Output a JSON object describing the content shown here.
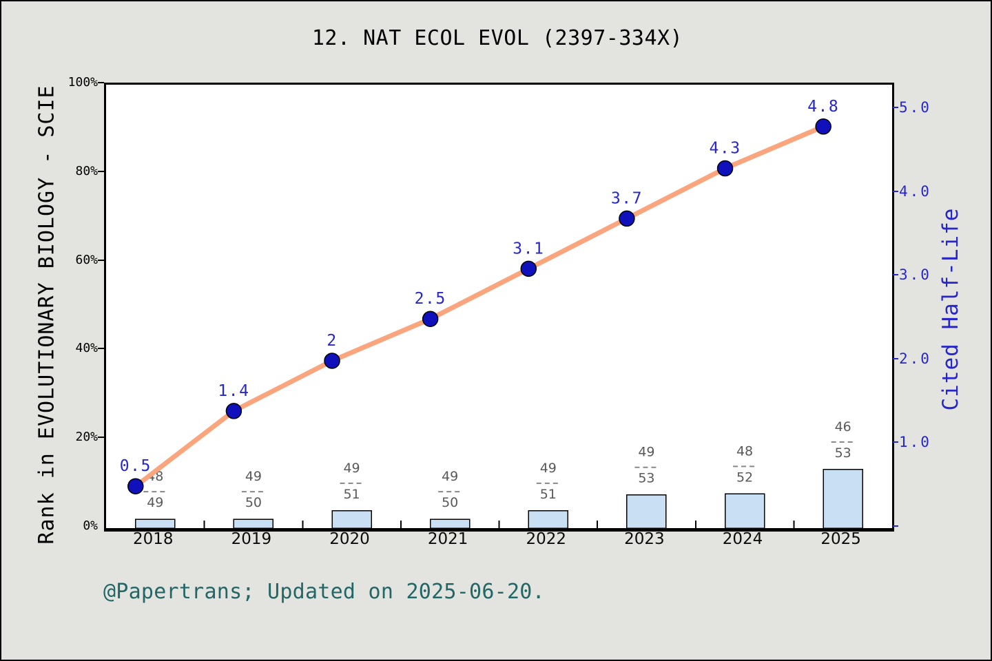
{
  "chart_data": {
    "type": "bar+line",
    "title": "12. NAT ECOL EVOL (2397-334X)",
    "footer": "@Papertrans; Updated on 2025-06-20.",
    "categories": [
      "2018",
      "2019",
      "2020",
      "2021",
      "2022",
      "2023",
      "2024",
      "2025"
    ],
    "left_axis": {
      "label": "Rank in EVOLUTIONARY BIOLOGY - SCIE",
      "range": [
        0,
        100
      ],
      "ticks": [
        {
          "value": 0,
          "label": "0%"
        },
        {
          "value": 20,
          "label": "20%"
        },
        {
          "value": 40,
          "label": "40%"
        },
        {
          "value": 60,
          "label": "60%"
        },
        {
          "value": 80,
          "label": "80%"
        },
        {
          "value": 100,
          "label": "100%"
        }
      ]
    },
    "right_axis": {
      "label": "Cited Half-Life",
      "range": [
        0,
        5.3
      ],
      "ticks": [
        {
          "value": 0,
          "label": ""
        },
        {
          "value": 1,
          "label": "1.0"
        },
        {
          "value": 2,
          "label": "2.0"
        },
        {
          "value": 3,
          "label": "3.0"
        },
        {
          "value": 4,
          "label": "4.0"
        },
        {
          "value": 5,
          "label": "5.0"
        }
      ]
    },
    "series": [
      {
        "name": "Rank in EVOLUTIONARY BIOLOGY - SCIE",
        "type": "bar",
        "axis": "left",
        "fractions": [
          {
            "num": "48",
            "den": "49"
          },
          {
            "num": "49",
            "den": "50"
          },
          {
            "num": "49",
            "den": "51"
          },
          {
            "num": "49",
            "den": "50"
          },
          {
            "num": "49",
            "den": "51"
          },
          {
            "num": "49",
            "den": "53"
          },
          {
            "num": "48",
            "den": "52"
          },
          {
            "num": "46",
            "den": "53"
          }
        ],
        "values_pct": [
          2.0,
          2.0,
          3.9,
          2.0,
          3.9,
          7.5,
          7.7,
          13.2
        ]
      },
      {
        "name": "Cited Half-Life",
        "type": "line",
        "axis": "right",
        "values": [
          0.5,
          1.4,
          2.0,
          2.5,
          3.1,
          3.7,
          4.3,
          4.8
        ],
        "point_labels": [
          "0.5",
          "1.4",
          "2",
          "2.5",
          "3.1",
          "3.7",
          "4.3",
          "4.8"
        ],
        "point_x_offset_slots": -0.2
      }
    ],
    "colors": {
      "background": "#E3E3DF",
      "plot_background": "#FFFFFF",
      "axis": "#000000",
      "line": "#FAA57D",
      "point_fill": "#1111BB",
      "blue_text": "#2626CC",
      "bar_fill": "#C8DFF4",
      "bar_border": "#000000",
      "fraction_text": "#595959",
      "footer_text": "#226666",
      "title_text": "#000000"
    }
  }
}
